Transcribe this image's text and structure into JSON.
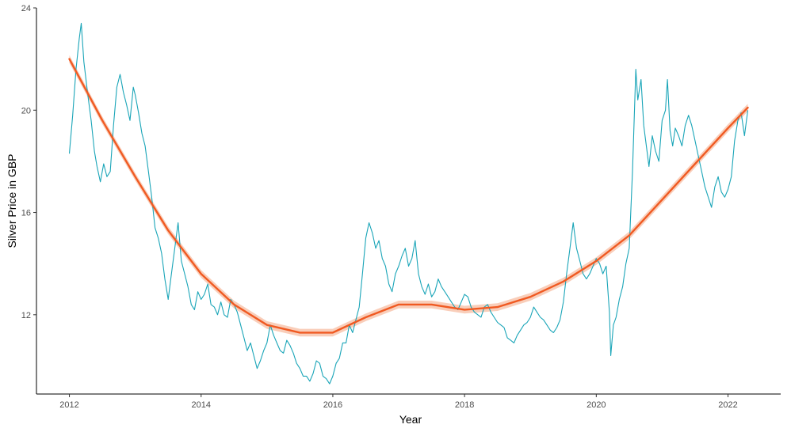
{
  "chart_data": {
    "type": "line",
    "title": "",
    "xlabel": "Year",
    "ylabel": "Silver Price in GBP",
    "xlim": [
      2011.5,
      2022.8
    ],
    "ylim": [
      8.9,
      24.0
    ],
    "x_ticks": [
      2012,
      2014,
      2016,
      2018,
      2020,
      2022
    ],
    "y_ticks": [
      12,
      16,
      20,
      24
    ],
    "grid": false,
    "series": [
      {
        "kind": "price",
        "color": "#1aa5b8",
        "points": [
          [
            2012.0,
            18.3
          ],
          [
            2012.05,
            19.8
          ],
          [
            2012.1,
            21.6
          ],
          [
            2012.15,
            22.8
          ],
          [
            2012.18,
            23.4
          ],
          [
            2012.22,
            21.9
          ],
          [
            2012.28,
            20.6
          ],
          [
            2012.33,
            19.6
          ],
          [
            2012.38,
            18.4
          ],
          [
            2012.42,
            17.8
          ],
          [
            2012.47,
            17.2
          ],
          [
            2012.52,
            17.9
          ],
          [
            2012.57,
            17.4
          ],
          [
            2012.62,
            17.6
          ],
          [
            2012.67,
            19.4
          ],
          [
            2012.72,
            20.9
          ],
          [
            2012.77,
            21.4
          ],
          [
            2012.82,
            20.7
          ],
          [
            2012.87,
            20.2
          ],
          [
            2012.92,
            19.6
          ],
          [
            2012.97,
            20.9
          ],
          [
            2013.0,
            20.6
          ],
          [
            2013.05,
            19.9
          ],
          [
            2013.1,
            19.1
          ],
          [
            2013.15,
            18.6
          ],
          [
            2013.2,
            17.6
          ],
          [
            2013.25,
            16.6
          ],
          [
            2013.3,
            15.4
          ],
          [
            2013.35,
            15.0
          ],
          [
            2013.4,
            14.4
          ],
          [
            2013.45,
            13.4
          ],
          [
            2013.5,
            12.6
          ],
          [
            2013.55,
            13.6
          ],
          [
            2013.6,
            14.6
          ],
          [
            2013.65,
            15.6
          ],
          [
            2013.7,
            14.1
          ],
          [
            2013.75,
            13.6
          ],
          [
            2013.8,
            13.1
          ],
          [
            2013.85,
            12.4
          ],
          [
            2013.9,
            12.2
          ],
          [
            2013.95,
            12.9
          ],
          [
            2014.0,
            12.6
          ],
          [
            2014.05,
            12.8
          ],
          [
            2014.1,
            13.2
          ],
          [
            2014.15,
            12.4
          ],
          [
            2014.2,
            12.3
          ],
          [
            2014.25,
            12.0
          ],
          [
            2014.3,
            12.5
          ],
          [
            2014.35,
            12.0
          ],
          [
            2014.4,
            11.9
          ],
          [
            2014.45,
            12.6
          ],
          [
            2014.5,
            12.4
          ],
          [
            2014.55,
            12.1
          ],
          [
            2014.6,
            11.6
          ],
          [
            2014.65,
            11.1
          ],
          [
            2014.7,
            10.6
          ],
          [
            2014.75,
            10.9
          ],
          [
            2014.8,
            10.4
          ],
          [
            2014.85,
            9.9
          ],
          [
            2014.9,
            10.2
          ],
          [
            2014.95,
            10.6
          ],
          [
            2015.0,
            10.9
          ],
          [
            2015.05,
            11.6
          ],
          [
            2015.1,
            11.2
          ],
          [
            2015.15,
            10.9
          ],
          [
            2015.2,
            10.6
          ],
          [
            2015.25,
            10.5
          ],
          [
            2015.3,
            11.0
          ],
          [
            2015.35,
            10.8
          ],
          [
            2015.4,
            10.5
          ],
          [
            2015.45,
            10.1
          ],
          [
            2015.5,
            9.9
          ],
          [
            2015.55,
            9.6
          ],
          [
            2015.6,
            9.6
          ],
          [
            2015.65,
            9.4
          ],
          [
            2015.7,
            9.7
          ],
          [
            2015.75,
            10.2
          ],
          [
            2015.8,
            10.1
          ],
          [
            2015.85,
            9.6
          ],
          [
            2015.9,
            9.5
          ],
          [
            2015.95,
            9.3
          ],
          [
            2016.0,
            9.6
          ],
          [
            2016.05,
            10.1
          ],
          [
            2016.1,
            10.3
          ],
          [
            2016.15,
            10.9
          ],
          [
            2016.2,
            10.9
          ],
          [
            2016.25,
            11.6
          ],
          [
            2016.3,
            11.3
          ],
          [
            2016.35,
            11.8
          ],
          [
            2016.4,
            12.3
          ],
          [
            2016.45,
            13.6
          ],
          [
            2016.5,
            15.0
          ],
          [
            2016.55,
            15.6
          ],
          [
            2016.6,
            15.2
          ],
          [
            2016.65,
            14.6
          ],
          [
            2016.7,
            14.9
          ],
          [
            2016.75,
            14.2
          ],
          [
            2016.8,
            13.9
          ],
          [
            2016.85,
            13.2
          ],
          [
            2016.9,
            12.9
          ],
          [
            2016.95,
            13.6
          ],
          [
            2017.0,
            13.9
          ],
          [
            2017.05,
            14.3
          ],
          [
            2017.1,
            14.6
          ],
          [
            2017.15,
            13.9
          ],
          [
            2017.2,
            14.2
          ],
          [
            2017.25,
            14.9
          ],
          [
            2017.3,
            13.6
          ],
          [
            2017.35,
            13.1
          ],
          [
            2017.4,
            12.8
          ],
          [
            2017.45,
            13.2
          ],
          [
            2017.5,
            12.7
          ],
          [
            2017.55,
            12.9
          ],
          [
            2017.6,
            13.4
          ],
          [
            2017.65,
            13.1
          ],
          [
            2017.7,
            12.9
          ],
          [
            2017.75,
            12.7
          ],
          [
            2017.8,
            12.5
          ],
          [
            2017.85,
            12.3
          ],
          [
            2017.9,
            12.2
          ],
          [
            2017.95,
            12.5
          ],
          [
            2018.0,
            12.8
          ],
          [
            2018.05,
            12.7
          ],
          [
            2018.1,
            12.3
          ],
          [
            2018.15,
            12.1
          ],
          [
            2018.2,
            12.0
          ],
          [
            2018.25,
            11.9
          ],
          [
            2018.3,
            12.3
          ],
          [
            2018.35,
            12.4
          ],
          [
            2018.4,
            12.1
          ],
          [
            2018.45,
            11.9
          ],
          [
            2018.5,
            11.7
          ],
          [
            2018.55,
            11.6
          ],
          [
            2018.6,
            11.5
          ],
          [
            2018.65,
            11.1
          ],
          [
            2018.7,
            11.0
          ],
          [
            2018.75,
            10.9
          ],
          [
            2018.8,
            11.2
          ],
          [
            2018.85,
            11.4
          ],
          [
            2018.9,
            11.6
          ],
          [
            2018.95,
            11.7
          ],
          [
            2019.0,
            11.9
          ],
          [
            2019.05,
            12.3
          ],
          [
            2019.1,
            12.1
          ],
          [
            2019.15,
            11.9
          ],
          [
            2019.2,
            11.8
          ],
          [
            2019.25,
            11.6
          ],
          [
            2019.3,
            11.4
          ],
          [
            2019.35,
            11.3
          ],
          [
            2019.4,
            11.5
          ],
          [
            2019.45,
            11.8
          ],
          [
            2019.5,
            12.5
          ],
          [
            2019.55,
            13.6
          ],
          [
            2019.6,
            14.6
          ],
          [
            2019.65,
            15.6
          ],
          [
            2019.7,
            14.6
          ],
          [
            2019.75,
            14.1
          ],
          [
            2019.8,
            13.6
          ],
          [
            2019.85,
            13.4
          ],
          [
            2019.9,
            13.6
          ],
          [
            2019.95,
            13.9
          ],
          [
            2020.0,
            14.2
          ],
          [
            2020.05,
            14.0
          ],
          [
            2020.1,
            13.6
          ],
          [
            2020.15,
            13.9
          ],
          [
            2020.2,
            12.1
          ],
          [
            2020.22,
            10.4
          ],
          [
            2020.26,
            11.6
          ],
          [
            2020.3,
            11.9
          ],
          [
            2020.35,
            12.6
          ],
          [
            2020.4,
            13.1
          ],
          [
            2020.45,
            14.0
          ],
          [
            2020.5,
            14.6
          ],
          [
            2020.55,
            17.6
          ],
          [
            2020.6,
            21.6
          ],
          [
            2020.63,
            20.4
          ],
          [
            2020.68,
            21.2
          ],
          [
            2020.72,
            19.4
          ],
          [
            2020.76,
            18.6
          ],
          [
            2020.8,
            17.8
          ],
          [
            2020.85,
            19.0
          ],
          [
            2020.9,
            18.4
          ],
          [
            2020.95,
            18.0
          ],
          [
            2021.0,
            19.6
          ],
          [
            2021.05,
            20.0
          ],
          [
            2021.08,
            21.2
          ],
          [
            2021.12,
            19.2
          ],
          [
            2021.16,
            18.6
          ],
          [
            2021.2,
            19.3
          ],
          [
            2021.25,
            19.0
          ],
          [
            2021.3,
            18.6
          ],
          [
            2021.35,
            19.4
          ],
          [
            2021.4,
            19.8
          ],
          [
            2021.45,
            19.4
          ],
          [
            2021.5,
            18.8
          ],
          [
            2021.55,
            18.2
          ],
          [
            2021.6,
            17.6
          ],
          [
            2021.65,
            17.0
          ],
          [
            2021.7,
            16.6
          ],
          [
            2021.75,
            16.2
          ],
          [
            2021.8,
            17.0
          ],
          [
            2021.85,
            17.4
          ],
          [
            2021.9,
            16.8
          ],
          [
            2021.95,
            16.6
          ],
          [
            2022.0,
            16.9
          ],
          [
            2022.05,
            17.4
          ],
          [
            2022.1,
            18.8
          ],
          [
            2022.15,
            19.6
          ],
          [
            2022.2,
            19.9
          ],
          [
            2022.25,
            19.0
          ],
          [
            2022.3,
            20.0
          ]
        ]
      },
      {
        "kind": "smooth",
        "color": "#f05a22",
        "band_color": "#f4a582",
        "band_halfwidth": 0.15,
        "points": [
          [
            2012.0,
            22.0
          ],
          [
            2012.5,
            19.6
          ],
          [
            2013.0,
            17.4
          ],
          [
            2013.5,
            15.3
          ],
          [
            2014.0,
            13.6
          ],
          [
            2014.5,
            12.4
          ],
          [
            2015.0,
            11.6
          ],
          [
            2015.5,
            11.3
          ],
          [
            2016.0,
            11.3
          ],
          [
            2016.5,
            11.9
          ],
          [
            2017.0,
            12.4
          ],
          [
            2017.5,
            12.4
          ],
          [
            2018.0,
            12.2
          ],
          [
            2018.5,
            12.3
          ],
          [
            2019.0,
            12.7
          ],
          [
            2019.5,
            13.3
          ],
          [
            2020.0,
            14.1
          ],
          [
            2020.5,
            15.1
          ],
          [
            2021.0,
            16.5
          ],
          [
            2021.5,
            17.9
          ],
          [
            2022.0,
            19.3
          ],
          [
            2022.3,
            20.1
          ]
        ]
      }
    ]
  }
}
